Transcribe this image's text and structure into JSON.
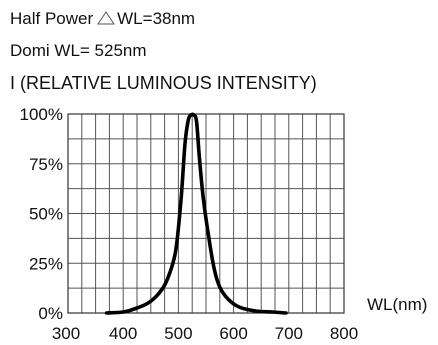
{
  "header": {
    "half_power_label": "Half Power",
    "half_power_value": "WL=38nm",
    "dominant": "Domi  WL= 525nm",
    "intensity_label": "I (RELATIVE LUMINOUS INTENSITY)"
  },
  "icons": {
    "delta": "triangle-icon"
  },
  "chart_data": {
    "type": "line",
    "title": "",
    "xlabel": "WL(nm)",
    "ylabel": "I (RELATIVE LUMINOUS INTENSITY)",
    "xlim": [
      300,
      800
    ],
    "ylim": [
      0,
      100
    ],
    "xticks": [
      300,
      400,
      500,
      600,
      700,
      800
    ],
    "xtick_labels": [
      "300",
      "400",
      "500",
      "600",
      "700",
      "800"
    ],
    "yticks": [
      0,
      25,
      50,
      75,
      100
    ],
    "ytick_labels": [
      "0%",
      "25%",
      "50%",
      "75%",
      "100%"
    ],
    "grid": true,
    "series": [
      {
        "color": "#000000",
        "x": [
          370,
          400,
          420,
          445,
          465,
          480,
          495,
          505,
          512,
          518,
          523,
          528,
          533,
          538,
          545,
          555,
          565,
          575,
          590,
          610,
          640,
          670,
          695
        ],
        "y": [
          0,
          0.5,
          2,
          5,
          10,
          17,
          31,
          58,
          85,
          97,
          99.5,
          99.5,
          96,
          78,
          58,
          38,
          22,
          13,
          7,
          3,
          1,
          0.5,
          0
        ]
      }
    ]
  }
}
